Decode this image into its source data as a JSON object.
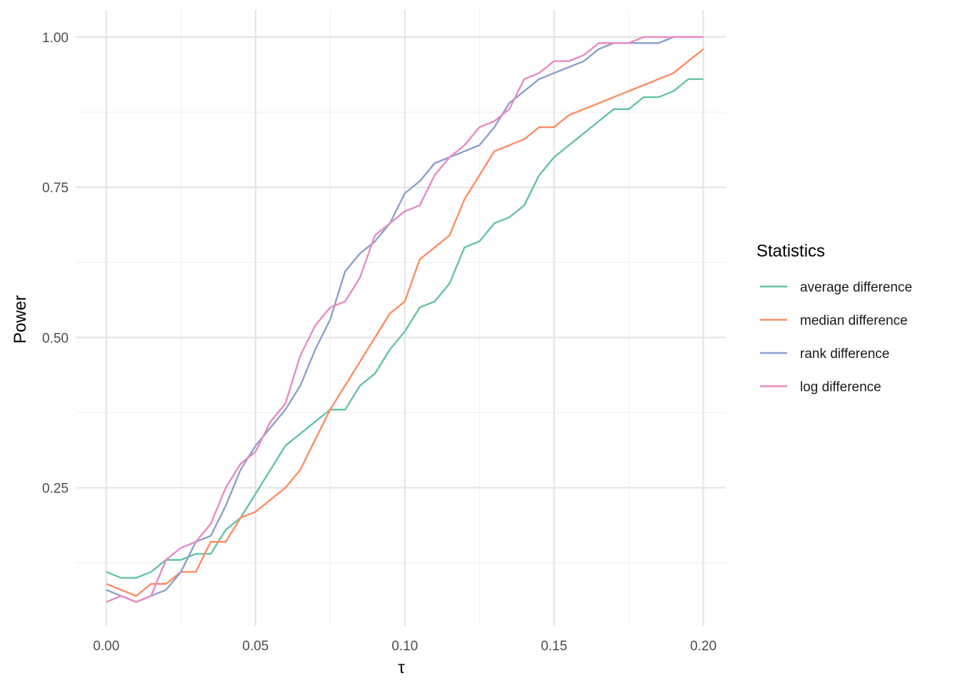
{
  "chart_data": {
    "type": "line",
    "title": "",
    "xlabel": "τ",
    "ylabel": "Power",
    "xlim": [
      -0.01,
      0.2075
    ],
    "ylim": [
      0.02,
      1.045
    ],
    "x_ticks": [
      0.0,
      0.05,
      0.1,
      0.15,
      0.2
    ],
    "x_tick_labels": [
      "0.00",
      "0.05",
      "0.10",
      "0.15",
      "0.20"
    ],
    "y_ticks": [
      0.25,
      0.5,
      0.75,
      1.0
    ],
    "y_tick_labels": [
      "0.25",
      "0.50",
      "0.75",
      "1.00"
    ],
    "grid": true,
    "legend": {
      "title": "Statistics",
      "position": "right"
    },
    "x": [
      0.0,
      0.005,
      0.01,
      0.015,
      0.02,
      0.025,
      0.03,
      0.035,
      0.04,
      0.045,
      0.05,
      0.055,
      0.06,
      0.065,
      0.07,
      0.075,
      0.08,
      0.085,
      0.09,
      0.095,
      0.1,
      0.105,
      0.11,
      0.115,
      0.12,
      0.125,
      0.13,
      0.135,
      0.14,
      0.145,
      0.15,
      0.155,
      0.16,
      0.165,
      0.17,
      0.175,
      0.18,
      0.185,
      0.19,
      0.195,
      0.2
    ],
    "series": [
      {
        "name": "average difference",
        "color": "#66c2a5",
        "values": [
          0.11,
          0.1,
          0.1,
          0.11,
          0.13,
          0.13,
          0.14,
          0.14,
          0.18,
          0.2,
          0.24,
          0.28,
          0.32,
          0.34,
          0.36,
          0.38,
          0.38,
          0.42,
          0.44,
          0.48,
          0.51,
          0.55,
          0.56,
          0.59,
          0.65,
          0.66,
          0.69,
          0.7,
          0.72,
          0.77,
          0.8,
          0.82,
          0.84,
          0.86,
          0.88,
          0.88,
          0.9,
          0.9,
          0.91,
          0.93,
          0.93
        ]
      },
      {
        "name": "median difference",
        "color": "#fc8d62",
        "values": [
          0.09,
          0.08,
          0.07,
          0.09,
          0.09,
          0.11,
          0.11,
          0.16,
          0.16,
          0.2,
          0.21,
          0.23,
          0.25,
          0.28,
          0.33,
          0.38,
          0.42,
          0.46,
          0.5,
          0.54,
          0.56,
          0.63,
          0.65,
          0.67,
          0.73,
          0.77,
          0.81,
          0.82,
          0.83,
          0.85,
          0.85,
          0.87,
          0.88,
          0.89,
          0.9,
          0.91,
          0.92,
          0.93,
          0.94,
          0.96,
          0.98
        ]
      },
      {
        "name": "rank difference",
        "color": "#8da0cb",
        "values": [
          0.08,
          0.07,
          0.06,
          0.07,
          0.08,
          0.11,
          0.16,
          0.17,
          0.22,
          0.28,
          0.32,
          0.35,
          0.38,
          0.42,
          0.48,
          0.53,
          0.61,
          0.64,
          0.66,
          0.69,
          0.74,
          0.76,
          0.79,
          0.8,
          0.81,
          0.82,
          0.85,
          0.89,
          0.91,
          0.93,
          0.94,
          0.95,
          0.96,
          0.98,
          0.99,
          0.99,
          0.99,
          0.99,
          1.0,
          1.0,
          1.0
        ]
      },
      {
        "name": "log difference",
        "color": "#e78ac3",
        "values": [
          0.06,
          0.07,
          0.06,
          0.07,
          0.13,
          0.15,
          0.16,
          0.19,
          0.25,
          0.29,
          0.31,
          0.36,
          0.39,
          0.47,
          0.52,
          0.55,
          0.56,
          0.6,
          0.67,
          0.69,
          0.71,
          0.72,
          0.77,
          0.8,
          0.82,
          0.85,
          0.86,
          0.88,
          0.93,
          0.94,
          0.96,
          0.96,
          0.97,
          0.99,
          0.99,
          0.99,
          1.0,
          1.0,
          1.0,
          1.0,
          1.0
        ]
      }
    ]
  }
}
